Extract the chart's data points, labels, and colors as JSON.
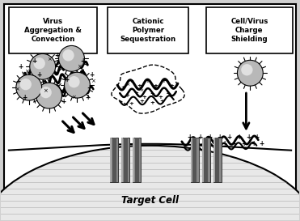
{
  "box1_title": "Virus\nAggregation &\nConvection",
  "box2_title": "Cationic\nPolymer\nSequestration",
  "box3_title": "Cell/Virus\nCharge\nShielding",
  "bottom_label": "Target Cell",
  "outer_bg": "#d0d0d0",
  "inner_bg": "#ffffff",
  "cell_fill": "#e8e8e8",
  "receptor_dark": "#555555",
  "receptor_mid": "#888888",
  "receptor_light": "#aaaaaa",
  "virus_fill": "#b8b8b8",
  "virus_highlight": "#e0e0e0"
}
